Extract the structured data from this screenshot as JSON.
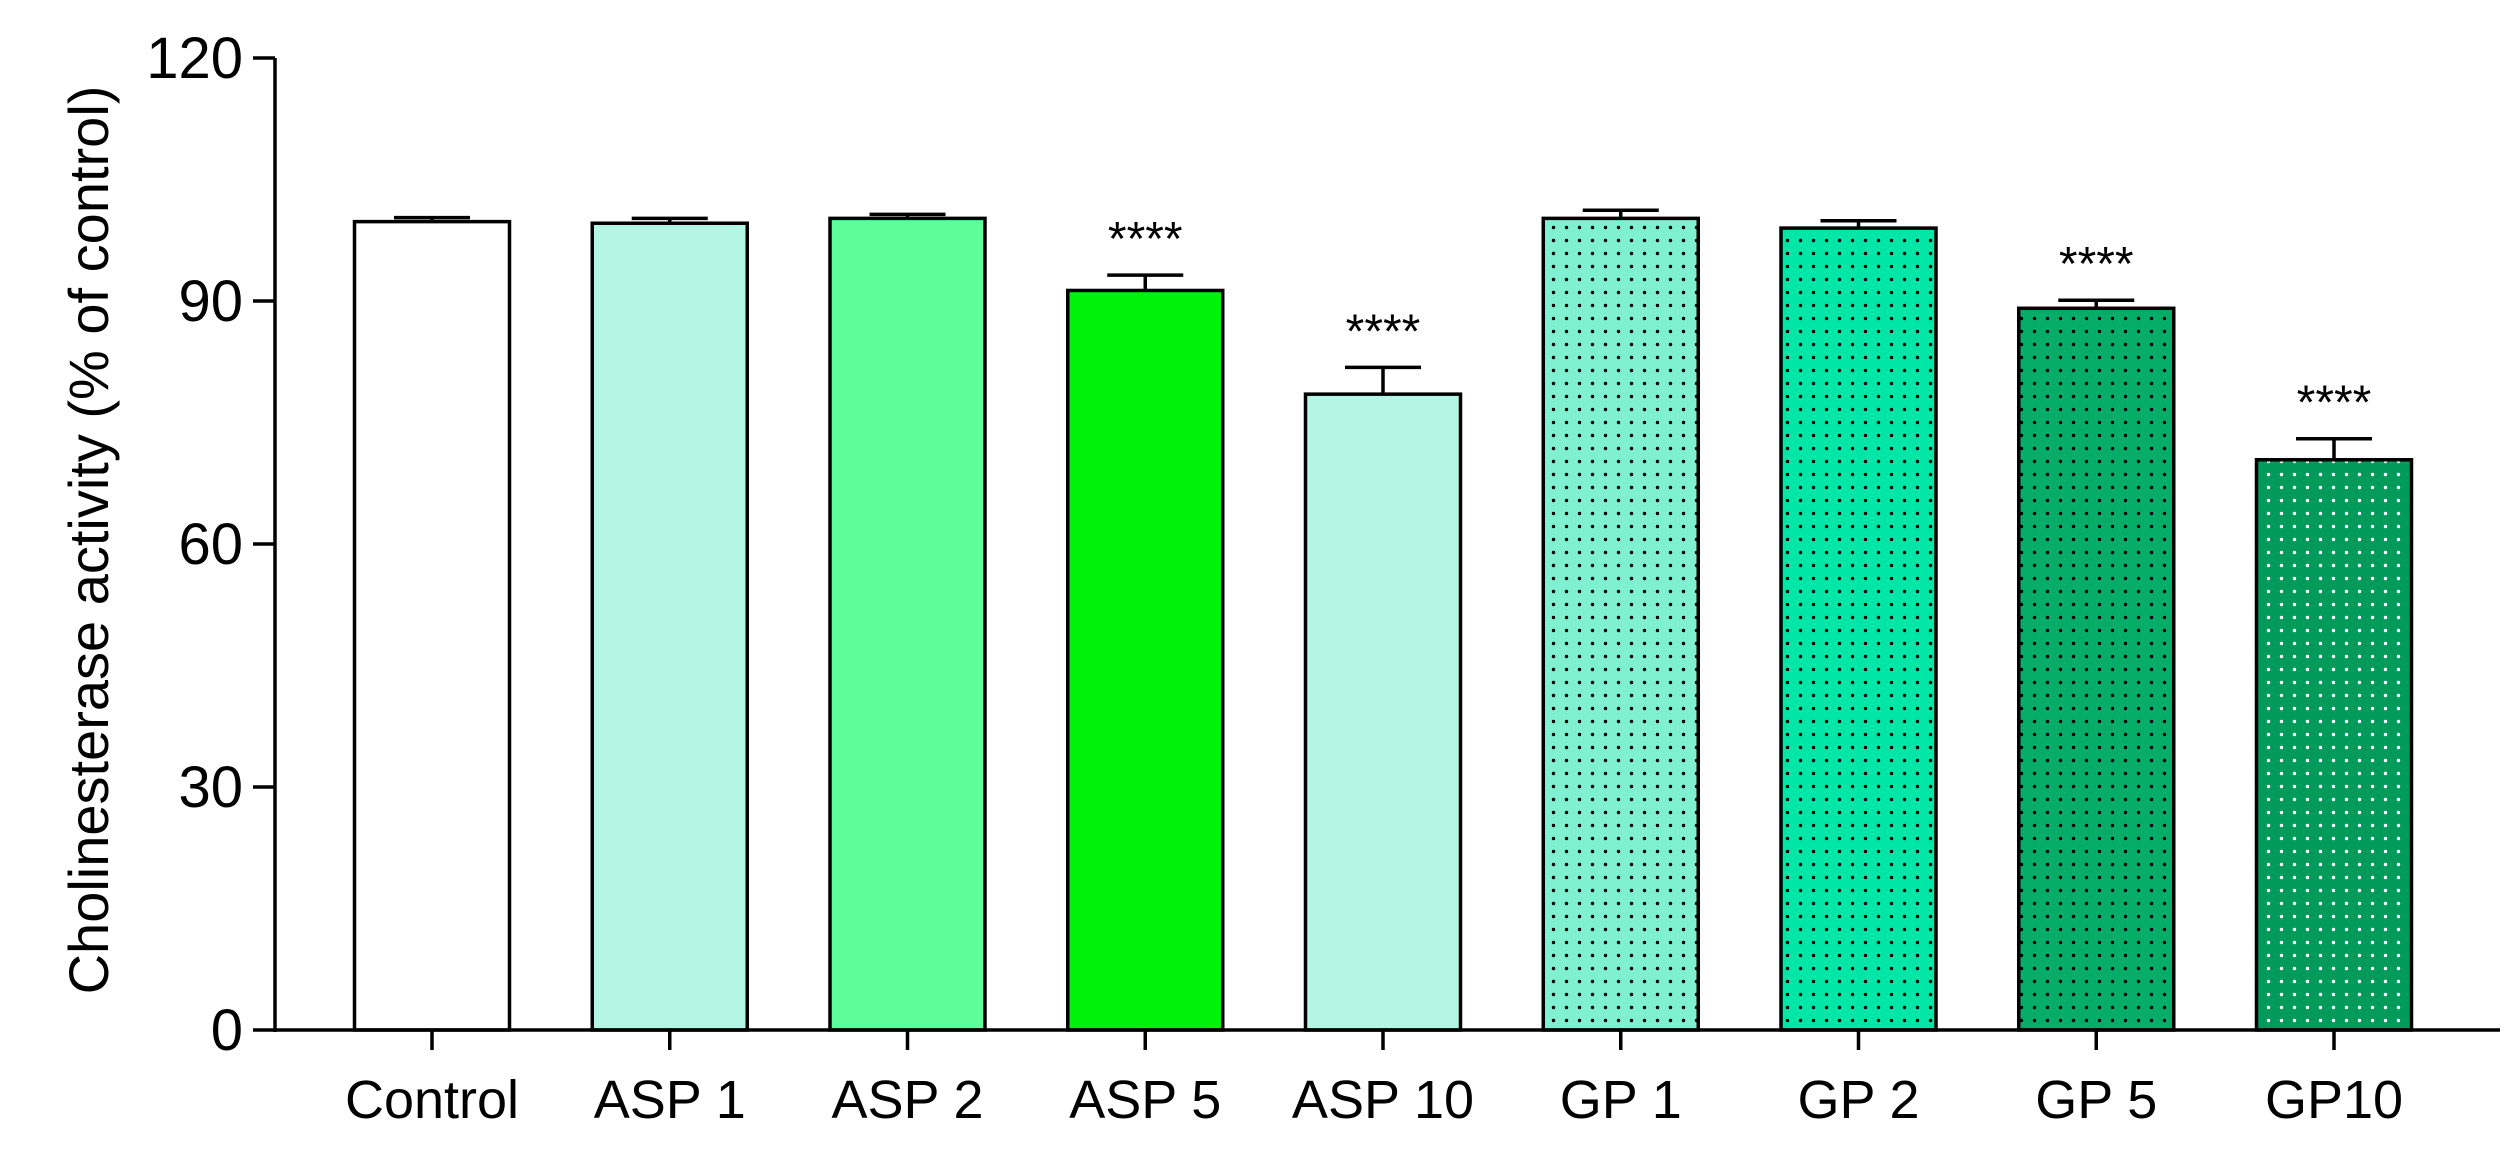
{
  "chart_data": {
    "type": "bar",
    "title": "",
    "xlabel": "",
    "ylabel": "Cholinesterase activity (% of control)",
    "ylim": [
      0,
      120
    ],
    "yticks": [
      0,
      30,
      60,
      90,
      120
    ],
    "categories": [
      "Control",
      "ASP 1",
      "ASP 2",
      "ASP 5",
      "ASP 10",
      "GP 1",
      "GP 2",
      "GP 5",
      "GP10"
    ],
    "values": [
      99.8,
      99.6,
      100.2,
      91.3,
      78.5,
      100.2,
      99.0,
      89.1,
      70.4
    ],
    "errors": [
      0.5,
      0.6,
      0.5,
      1.9,
      3.3,
      1.0,
      0.9,
      1.0,
      2.6
    ],
    "significance": [
      "",
      "",
      "",
      "****",
      "****",
      "",
      "",
      "****",
      "****"
    ],
    "colors": [
      "#ffffff",
      "#b5f5e3",
      "#5cfd9a",
      "#00f20c",
      "#b5f5e3",
      "#7ff1d0",
      "#00e6a6",
      "#06ad69",
      "#009a5a"
    ],
    "dot_colors": [
      "",
      "",
      "",
      "",
      "",
      "#000000",
      "#000000",
      "#000000",
      "#ffffff"
    ]
  }
}
